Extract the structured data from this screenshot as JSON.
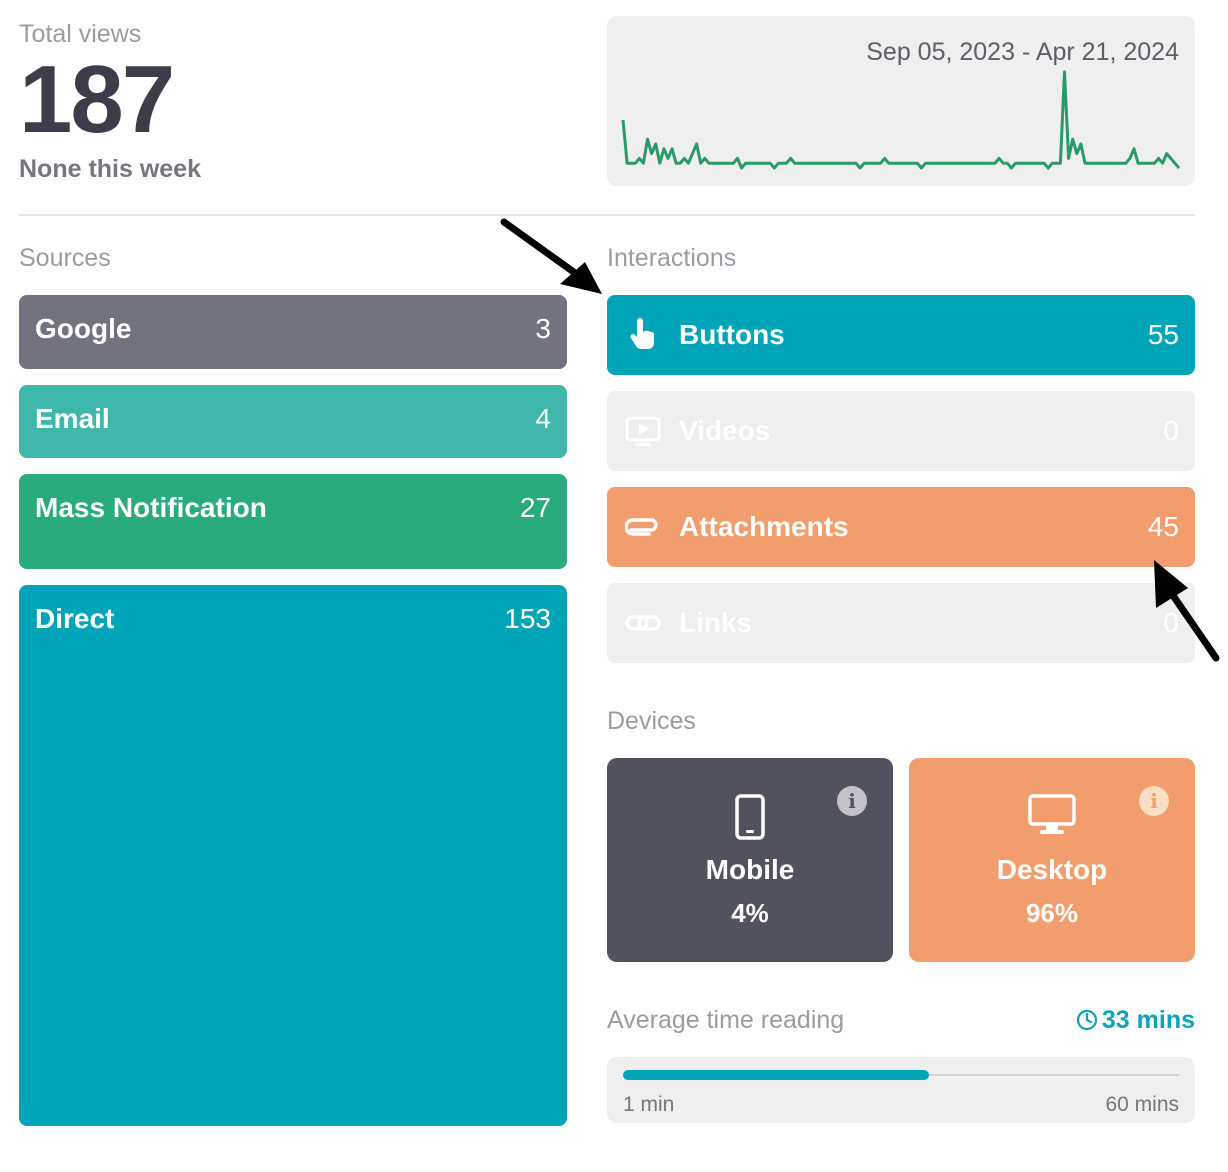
{
  "summary": {
    "total_views_label": "Total views",
    "total_views_value": "187",
    "week_note": "None this week"
  },
  "sparkline": {
    "date_range": "Sep 05, 2023 - Apr 21, 2024",
    "line_color": "#2a9a68",
    "values": [
      10,
      1,
      1,
      1,
      2,
      1,
      6,
      3,
      5,
      1,
      4,
      2,
      4,
      1,
      1,
      2,
      1,
      3,
      5,
      1,
      2,
      1,
      1,
      1,
      1,
      1,
      1,
      1,
      2,
      0,
      1,
      1,
      1,
      1,
      1,
      1,
      1,
      0,
      1,
      1,
      1,
      2,
      1,
      1,
      1,
      1,
      1,
      1,
      1,
      1,
      1,
      1,
      1,
      1,
      1,
      1,
      1,
      1,
      0,
      1,
      1,
      1,
      1,
      1,
      2,
      1,
      1,
      1,
      1,
      1,
      1,
      1,
      1,
      0,
      1,
      1,
      1,
      1,
      1,
      1,
      1,
      1,
      1,
      1,
      1,
      1,
      1,
      1,
      1,
      1,
      1,
      1,
      2,
      1,
      1,
      0,
      1,
      1,
      1,
      1,
      1,
      1,
      1,
      1,
      0,
      1,
      1,
      1,
      20,
      2,
      6,
      3,
      5,
      1,
      1,
      1,
      1,
      1,
      1,
      1,
      1,
      1,
      1,
      1,
      2,
      4,
      1,
      1,
      1,
      1,
      1,
      2,
      1,
      3,
      2,
      1,
      0
    ]
  },
  "sources": {
    "label": "Sources",
    "items": [
      {
        "label": "Google",
        "value": "3",
        "color": "#73737f"
      },
      {
        "label": "Email",
        "value": "4",
        "color": "#3fb8ab"
      },
      {
        "label": "Mass Notification",
        "value": "27",
        "color": "#2aab7b"
      },
      {
        "label": "Direct",
        "value": "153",
        "color": "#00a4b9"
      }
    ]
  },
  "interactions": {
    "label": "Interactions",
    "items": [
      {
        "label": "Buttons",
        "value": "55",
        "icon": "pointer-hand-icon",
        "color": "#00a4b9"
      },
      {
        "label": "Videos",
        "value": "0",
        "icon": "video-play-icon",
        "color": "#efeff0"
      },
      {
        "label": "Attachments",
        "value": "45",
        "icon": "paperclip-icon",
        "color": "#f29d6e"
      },
      {
        "label": "Links",
        "value": "0",
        "icon": "link-icon",
        "color": "#efeff0"
      }
    ]
  },
  "devices": {
    "label": "Devices",
    "mobile": {
      "label": "Mobile",
      "pct": "4%",
      "icon": "mobile-phone-icon",
      "color": "#52525f"
    },
    "desktop": {
      "label": "Desktop",
      "pct": "96%",
      "icon": "desktop-monitor-icon",
      "color": "#f29d6e"
    }
  },
  "reading": {
    "label": "Average time reading",
    "value": "33 mins",
    "min_label": "1 min",
    "max_label": "60 mins",
    "fill_fraction": 0.55,
    "accent": "#0fa3b5"
  }
}
